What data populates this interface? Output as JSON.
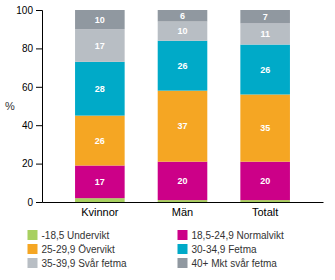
{
  "chart_data": {
    "type": "bar",
    "stacked": true,
    "categories": [
      "Kvinnor",
      "Män",
      "Totalt"
    ],
    "series": [
      {
        "name": "-18,5 Undervikt",
        "color": "#a8d060",
        "values": [
          2,
          1,
          1
        ],
        "data_labels": false
      },
      {
        "name": "18,5-24,9 Normalvikt",
        "color": "#cc0088",
        "values": [
          17,
          20,
          20
        ]
      },
      {
        "name": "25-29,9 Övervikt",
        "color": "#f5a623",
        "values": [
          26,
          37,
          35
        ]
      },
      {
        "name": "30-34,9 Fetma",
        "color": "#00aac8",
        "values": [
          28,
          26,
          26
        ]
      },
      {
        "name": "35-39,9 Svår fetma",
        "color": "#b8bec4",
        "values": [
          17,
          10,
          11
        ]
      },
      {
        "name": "40+ Mkt svår fetma",
        "color": "#9098a0",
        "values": [
          10,
          6,
          7
        ]
      }
    ],
    "ylabel": "%",
    "ylim": [
      0,
      100
    ],
    "yticks": [
      0,
      20,
      40,
      60,
      80,
      100
    ],
    "grid": false,
    "data_labels": true
  }
}
